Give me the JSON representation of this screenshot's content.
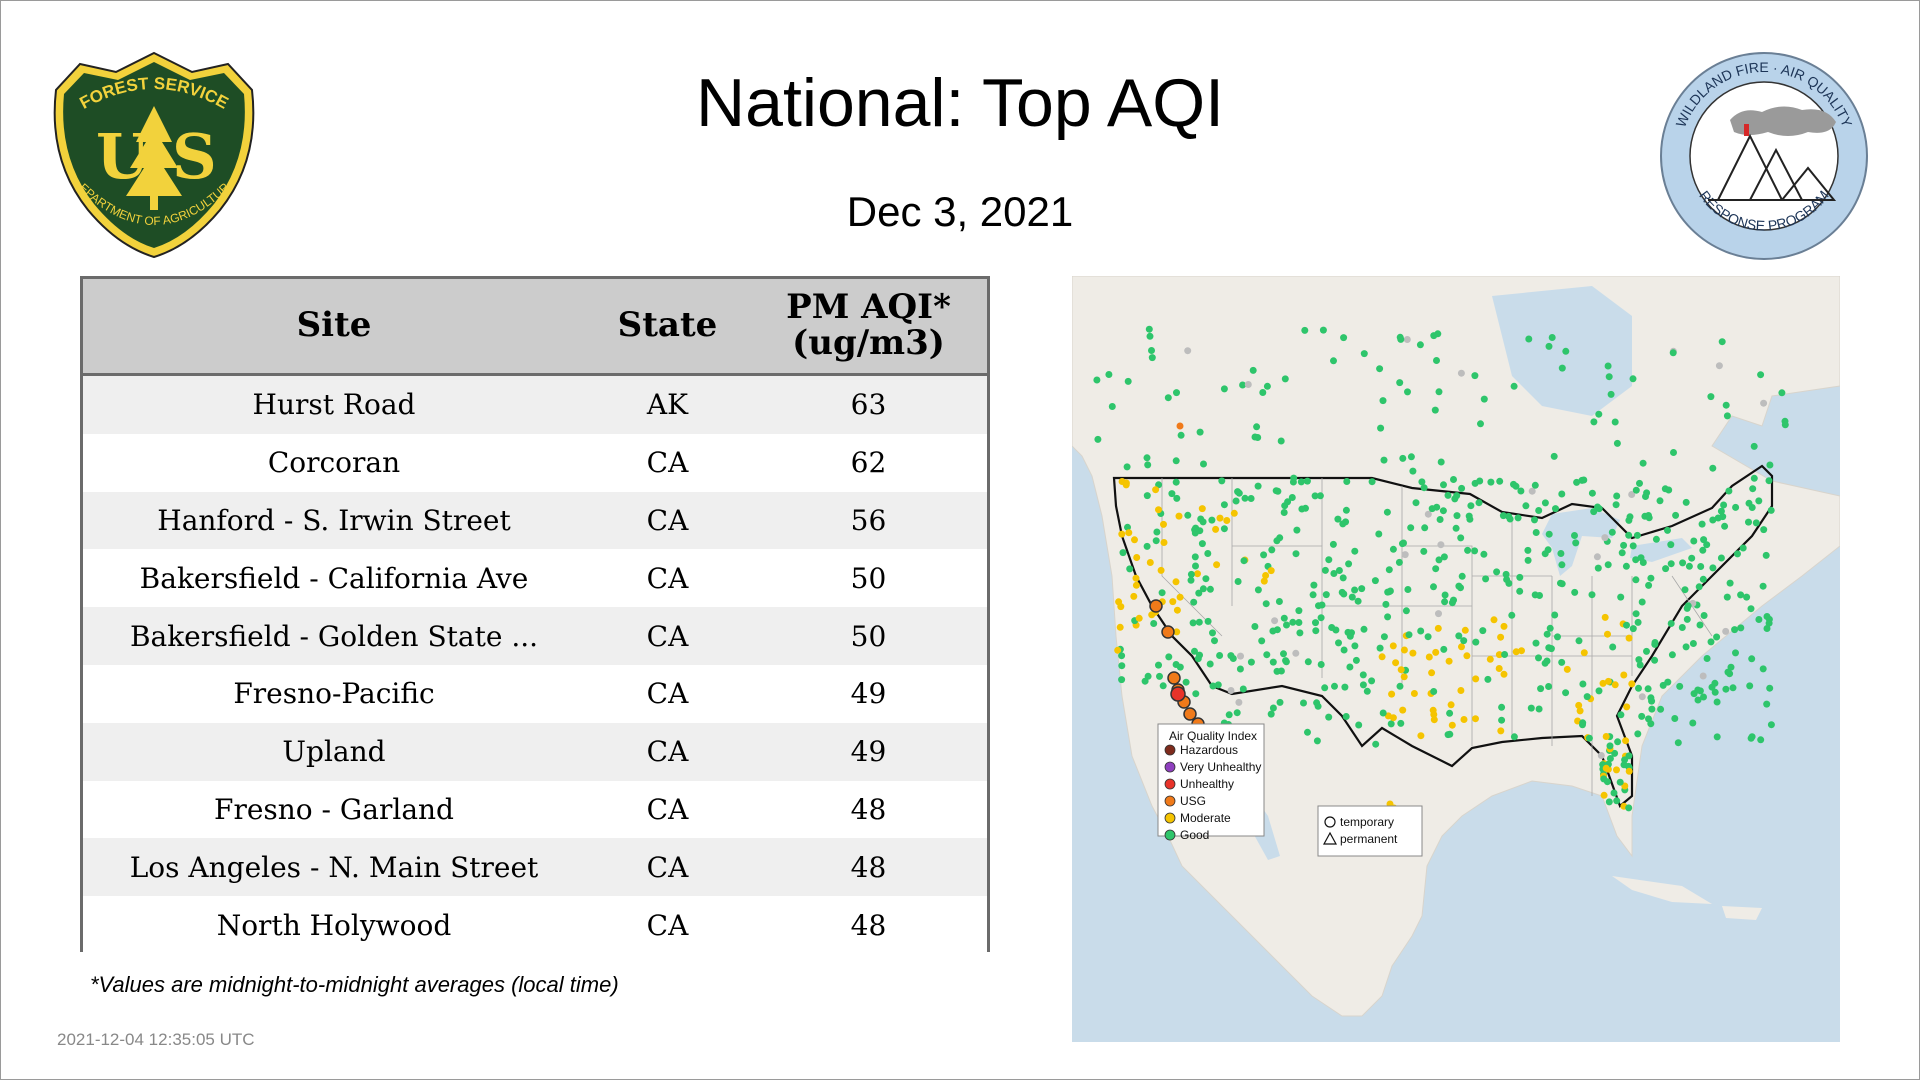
{
  "title": "National: Top AQI",
  "date": "Dec  3, 2021",
  "logos": {
    "usfs": {
      "top_text": "FOREST SERVICE",
      "letters": "U S",
      "bottom_text": "DEPARTMENT OF AGRICULTURE"
    },
    "wfaq": {
      "top_text": "WILDLAND FIRE · AIR QUALITY",
      "bottom_text": "RESPONSE PROGRAM"
    }
  },
  "table": {
    "headers": {
      "site": "Site",
      "state": "State",
      "aqi_line1": "PM AQI*",
      "aqi_line2": "(ug/m3)"
    },
    "rows": [
      {
        "site": "Hurst Road",
        "state": "AK",
        "aqi": "63"
      },
      {
        "site": "Corcoran",
        "state": "CA",
        "aqi": "62"
      },
      {
        "site": "Hanford - S. Irwin Street",
        "state": "CA",
        "aqi": "56"
      },
      {
        "site": "Bakersfield - California Ave",
        "state": "CA",
        "aqi": "50"
      },
      {
        "site": "Bakersfield - Golden State ...",
        "state": "CA",
        "aqi": "50"
      },
      {
        "site": "Fresno-Pacific",
        "state": "CA",
        "aqi": "49"
      },
      {
        "site": "Upland",
        "state": "CA",
        "aqi": "49"
      },
      {
        "site": "Fresno - Garland",
        "state": "CA",
        "aqi": "48"
      },
      {
        "site": "Los Angeles - N. Main Street",
        "state": "CA",
        "aqi": "48"
      },
      {
        "site": "North Holywood",
        "state": "CA",
        "aqi": "48"
      }
    ]
  },
  "footnote": "*Values are midnight-to-midnight averages (local time)",
  "timestamp": "2021-12-04 12:35:05 UTC",
  "map": {
    "legend": {
      "title": "Air Quality Index",
      "items": [
        {
          "label": "Hazardous",
          "color": "#7e2b1c"
        },
        {
          "label": "Very Unhealthy",
          "color": "#8f3fbf"
        },
        {
          "label": "Unhealthy",
          "color": "#e8332a"
        },
        {
          "label": "USG",
          "color": "#f07a1a"
        },
        {
          "label": "Moderate",
          "color": "#f5c400"
        },
        {
          "label": "Good",
          "color": "#2ec56b"
        }
      ]
    },
    "marker_legend": {
      "temporary": "temporary",
      "permanent": "permanent"
    },
    "colors": {
      "good": "#2ec56b",
      "moderate": "#f5c400",
      "usg": "#f07a1a",
      "unhealthy": "#e8332a",
      "nodata": "#bdbdbd",
      "water": "#c9dcea",
      "land": "#efece6"
    }
  }
}
